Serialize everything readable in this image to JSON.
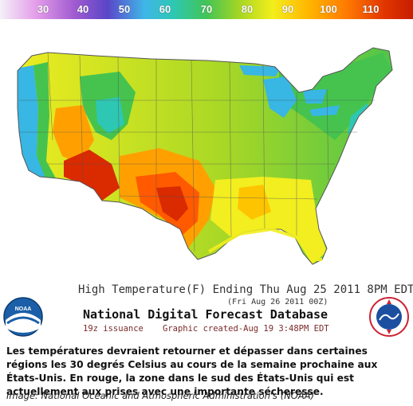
{
  "colorbar": {
    "ticks": [
      "30",
      "40",
      "50",
      "60",
      "70",
      "80",
      "90",
      "100",
      "110"
    ],
    "unit": "F"
  },
  "map": {
    "colors": {
      "ocean": "#ffffff",
      "cool_coast": "#38b6e4",
      "teal": "#2ec7b3",
      "green": "#45c34e",
      "yellow_green": "#a7d726",
      "yellow": "#f2ee1f",
      "orange": "#ffa000",
      "red_orange": "#ff5a00",
      "red": "#d92a00",
      "border": "#555555"
    }
  },
  "graphic": {
    "header": "High Temperature(F) Ending Thu Aug 25 2011  8PM EDT",
    "subheader": "(Fri Aug 26 2011 00Z)",
    "database_title": "National Digital Forecast Database",
    "issuance": "19z issuance",
    "created": "Graphic created-Aug 19  3:48PM EDT",
    "logo_left": "NOAA",
    "logo_right": "NATIONAL WEATHER SERVICE"
  },
  "caption": {
    "text": "Les températures devraient retourner et dépasser dans certaines régions les 30 degrés Celsius au cours de la semaine prochaine aux États-Unis. En rouge, la zone dans le sud des États-Unis qui est actuellement aux prises avec une importante sécheresse.",
    "credit": "Image: National Oceanic and Atmospheric Administration's  (NOAA)"
  }
}
